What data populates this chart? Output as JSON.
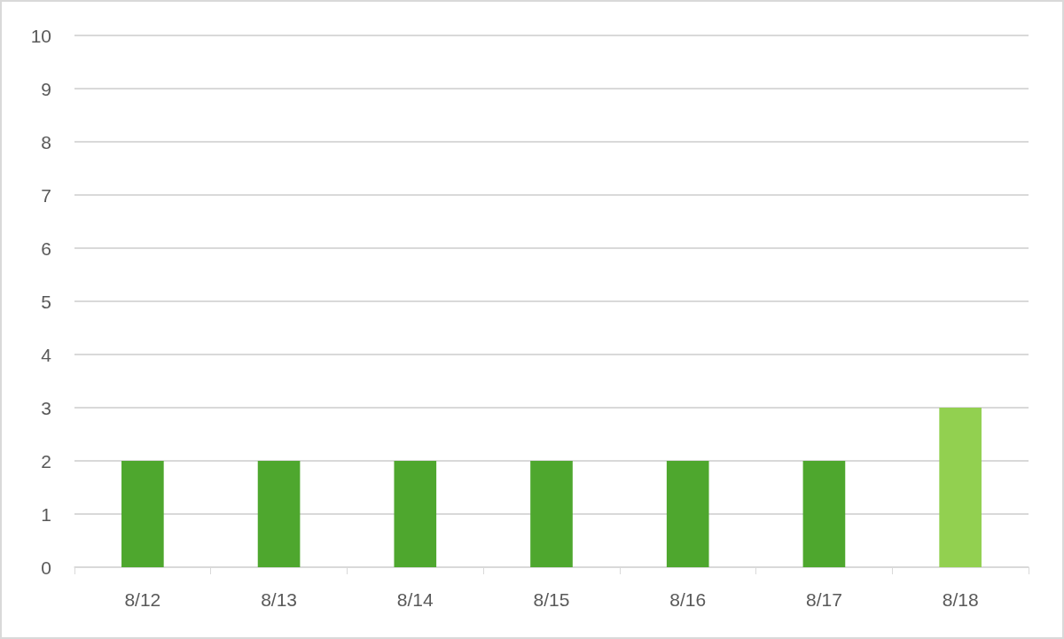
{
  "chart_data": {
    "type": "bar",
    "categories": [
      "8/12",
      "8/13",
      "8/14",
      "8/15",
      "8/16",
      "8/17",
      "8/18"
    ],
    "values": [
      2,
      2,
      2,
      2,
      2,
      2,
      3
    ],
    "colors": [
      "#4ea72e",
      "#4ea72e",
      "#4ea72e",
      "#4ea72e",
      "#4ea72e",
      "#4ea72e",
      "#92d050"
    ],
    "ylim": [
      0,
      10
    ],
    "yticks": [
      0,
      1,
      2,
      3,
      4,
      5,
      6,
      7,
      8,
      9,
      10
    ],
    "grid": "y"
  }
}
